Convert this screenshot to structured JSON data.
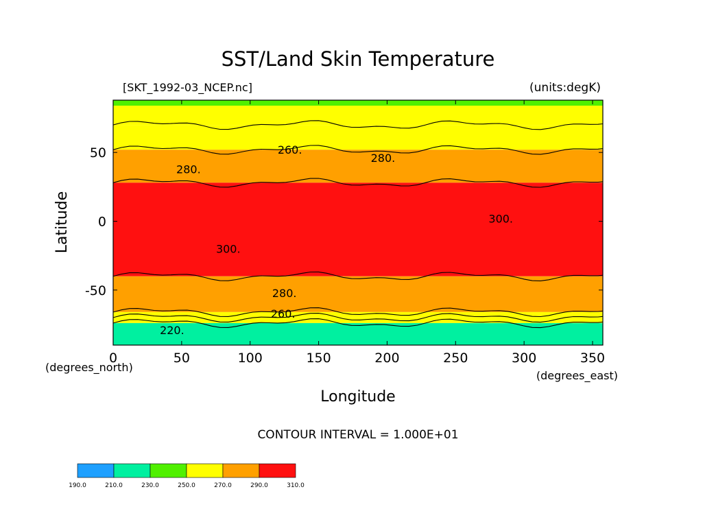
{
  "chart_data": {
    "type": "heatmap",
    "title": "SST/Land Skin Temperature",
    "file_label": "[SKT_1992-03_NCEP.nc]",
    "units_label": "(units:degK)",
    "xlabel": "Longitude",
    "ylabel": "Latitude",
    "x_units": "(degrees_east)",
    "y_units": "(degrees_north)",
    "xlim": [
      0,
      357.5
    ],
    "ylim": [
      -90,
      88
    ],
    "x_ticks": [
      0,
      50,
      100,
      150,
      200,
      250,
      300,
      350
    ],
    "y_ticks": [
      -50,
      0,
      50
    ],
    "contour_interval_text": "CONTOUR INTERVAL = 1.000E+01",
    "color_levels": [
      190,
      210,
      230,
      250,
      270,
      290,
      310
    ],
    "color_level_labels": [
      "190.0",
      "210.0",
      "230.0",
      "250.0",
      "270.0",
      "290.0",
      "310.0"
    ],
    "color_fills": [
      "#1ea0ff",
      "#00f0a0",
      "#50f000",
      "#ffff00",
      "#ffa000",
      "#ff1010"
    ],
    "zonal_bands": [
      {
        "lat_min": 84,
        "lat_max": 88,
        "value": 245
      },
      {
        "lat_min": 70,
        "lat_max": 84,
        "value": 262
      },
      {
        "lat_min": 52,
        "lat_max": 70,
        "value": 268
      },
      {
        "lat_min": 28,
        "lat_max": 52,
        "value": 282
      },
      {
        "lat_min": -40,
        "lat_max": 28,
        "value": 298
      },
      {
        "lat_min": -66,
        "lat_max": -40,
        "value": 282
      },
      {
        "lat_min": -70,
        "lat_max": -66,
        "value": 268
      },
      {
        "lat_min": -74,
        "lat_max": -70,
        "value": 250
      },
      {
        "lat_min": -90,
        "lat_max": -74,
        "value": 225
      }
    ],
    "contour_labels": [
      {
        "text": "260.",
        "lon": 129,
        "lat": 52
      },
      {
        "text": "280.",
        "lon": 197,
        "lat": 46
      },
      {
        "text": "280.",
        "lon": 55,
        "lat": 38
      },
      {
        "text": "300.",
        "lon": 283,
        "lat": 2
      },
      {
        "text": "300.",
        "lon": 84,
        "lat": -20
      },
      {
        "text": "280.",
        "lon": 125,
        "lat": -52
      },
      {
        "text": "260.",
        "lon": 124,
        "lat": -67
      },
      {
        "text": "220.",
        "lon": 43,
        "lat": -79
      }
    ]
  }
}
